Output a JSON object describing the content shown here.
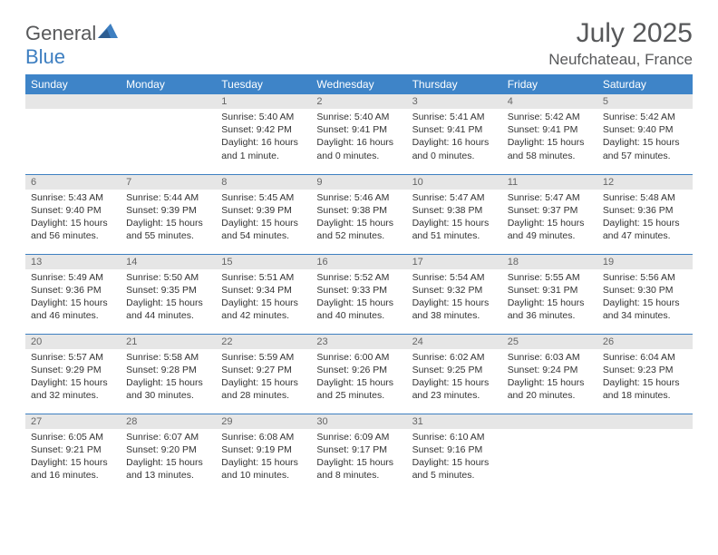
{
  "brand": {
    "name_left": "General",
    "name_right": "Blue"
  },
  "title": "July 2025",
  "location": "Neufchateau, France",
  "colors": {
    "header_bg": "#3e84c8",
    "header_text": "#ffffff",
    "day_num_bg": "#e6e6e6",
    "day_num_text": "#666666",
    "rule": "#3e7fc1",
    "body_text": "#333333",
    "title_text": "#57585a"
  },
  "day_headers": [
    "Sunday",
    "Monday",
    "Tuesday",
    "Wednesday",
    "Thursday",
    "Friday",
    "Saturday"
  ],
  "weeks": [
    [
      null,
      null,
      {
        "n": "1",
        "sunrise": "5:40 AM",
        "sunset": "9:42 PM",
        "daylight": "16 hours and 1 minute."
      },
      {
        "n": "2",
        "sunrise": "5:40 AM",
        "sunset": "9:41 PM",
        "daylight": "16 hours and 0 minutes."
      },
      {
        "n": "3",
        "sunrise": "5:41 AM",
        "sunset": "9:41 PM",
        "daylight": "16 hours and 0 minutes."
      },
      {
        "n": "4",
        "sunrise": "5:42 AM",
        "sunset": "9:41 PM",
        "daylight": "15 hours and 58 minutes."
      },
      {
        "n": "5",
        "sunrise": "5:42 AM",
        "sunset": "9:40 PM",
        "daylight": "15 hours and 57 minutes."
      }
    ],
    [
      {
        "n": "6",
        "sunrise": "5:43 AM",
        "sunset": "9:40 PM",
        "daylight": "15 hours and 56 minutes."
      },
      {
        "n": "7",
        "sunrise": "5:44 AM",
        "sunset": "9:39 PM",
        "daylight": "15 hours and 55 minutes."
      },
      {
        "n": "8",
        "sunrise": "5:45 AM",
        "sunset": "9:39 PM",
        "daylight": "15 hours and 54 minutes."
      },
      {
        "n": "9",
        "sunrise": "5:46 AM",
        "sunset": "9:38 PM",
        "daylight": "15 hours and 52 minutes."
      },
      {
        "n": "10",
        "sunrise": "5:47 AM",
        "sunset": "9:38 PM",
        "daylight": "15 hours and 51 minutes."
      },
      {
        "n": "11",
        "sunrise": "5:47 AM",
        "sunset": "9:37 PM",
        "daylight": "15 hours and 49 minutes."
      },
      {
        "n": "12",
        "sunrise": "5:48 AM",
        "sunset": "9:36 PM",
        "daylight": "15 hours and 47 minutes."
      }
    ],
    [
      {
        "n": "13",
        "sunrise": "5:49 AM",
        "sunset": "9:36 PM",
        "daylight": "15 hours and 46 minutes."
      },
      {
        "n": "14",
        "sunrise": "5:50 AM",
        "sunset": "9:35 PM",
        "daylight": "15 hours and 44 minutes."
      },
      {
        "n": "15",
        "sunrise": "5:51 AM",
        "sunset": "9:34 PM",
        "daylight": "15 hours and 42 minutes."
      },
      {
        "n": "16",
        "sunrise": "5:52 AM",
        "sunset": "9:33 PM",
        "daylight": "15 hours and 40 minutes."
      },
      {
        "n": "17",
        "sunrise": "5:54 AM",
        "sunset": "9:32 PM",
        "daylight": "15 hours and 38 minutes."
      },
      {
        "n": "18",
        "sunrise": "5:55 AM",
        "sunset": "9:31 PM",
        "daylight": "15 hours and 36 minutes."
      },
      {
        "n": "19",
        "sunrise": "5:56 AM",
        "sunset": "9:30 PM",
        "daylight": "15 hours and 34 minutes."
      }
    ],
    [
      {
        "n": "20",
        "sunrise": "5:57 AM",
        "sunset": "9:29 PM",
        "daylight": "15 hours and 32 minutes."
      },
      {
        "n": "21",
        "sunrise": "5:58 AM",
        "sunset": "9:28 PM",
        "daylight": "15 hours and 30 minutes."
      },
      {
        "n": "22",
        "sunrise": "5:59 AM",
        "sunset": "9:27 PM",
        "daylight": "15 hours and 28 minutes."
      },
      {
        "n": "23",
        "sunrise": "6:00 AM",
        "sunset": "9:26 PM",
        "daylight": "15 hours and 25 minutes."
      },
      {
        "n": "24",
        "sunrise": "6:02 AM",
        "sunset": "9:25 PM",
        "daylight": "15 hours and 23 minutes."
      },
      {
        "n": "25",
        "sunrise": "6:03 AM",
        "sunset": "9:24 PM",
        "daylight": "15 hours and 20 minutes."
      },
      {
        "n": "26",
        "sunrise": "6:04 AM",
        "sunset": "9:23 PM",
        "daylight": "15 hours and 18 minutes."
      }
    ],
    [
      {
        "n": "27",
        "sunrise": "6:05 AM",
        "sunset": "9:21 PM",
        "daylight": "15 hours and 16 minutes."
      },
      {
        "n": "28",
        "sunrise": "6:07 AM",
        "sunset": "9:20 PM",
        "daylight": "15 hours and 13 minutes."
      },
      {
        "n": "29",
        "sunrise": "6:08 AM",
        "sunset": "9:19 PM",
        "daylight": "15 hours and 10 minutes."
      },
      {
        "n": "30",
        "sunrise": "6:09 AM",
        "sunset": "9:17 PM",
        "daylight": "15 hours and 8 minutes."
      },
      {
        "n": "31",
        "sunrise": "6:10 AM",
        "sunset": "9:16 PM",
        "daylight": "15 hours and 5 minutes."
      },
      null,
      null
    ]
  ],
  "labels": {
    "sunrise": "Sunrise:",
    "sunset": "Sunset:",
    "daylight": "Daylight:"
  }
}
